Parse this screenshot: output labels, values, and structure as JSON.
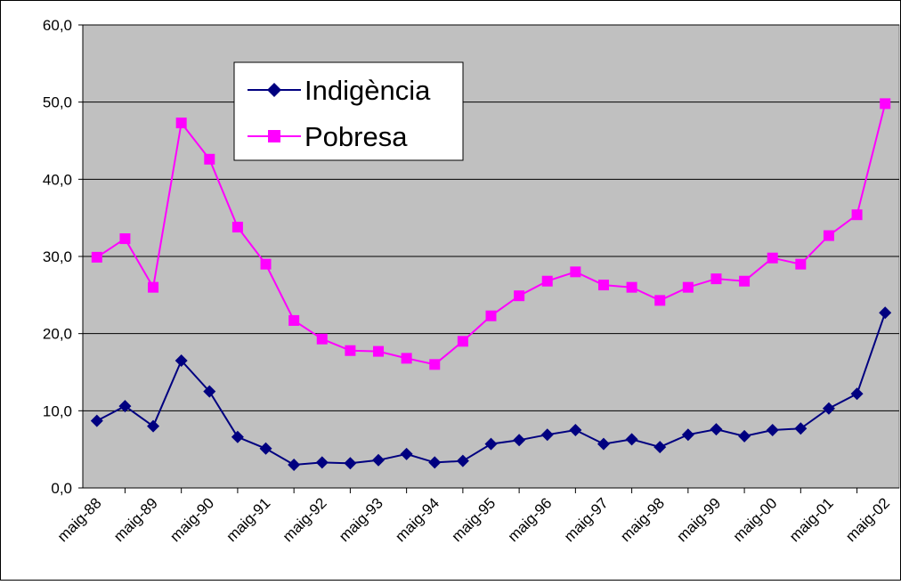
{
  "chart_data": {
    "type": "line",
    "categories": [
      "maig-88",
      null,
      "maig-89",
      null,
      "maig-90",
      null,
      "maig-91",
      null,
      "maig-92",
      null,
      "maig-93",
      null,
      "maig-94",
      null,
      "maig-95",
      null,
      "maig-96",
      null,
      "maig-97",
      null,
      "maig-98",
      null,
      "maig-99",
      null,
      "maig-00",
      null,
      "maig-01",
      null,
      "maig-02"
    ],
    "series": [
      {
        "name": "Indigència",
        "color": "#000080",
        "values": [
          8.7,
          10.6,
          8.0,
          16.5,
          12.5,
          6.6,
          5.1,
          3.0,
          3.3,
          3.2,
          3.6,
          4.4,
          3.3,
          3.5,
          5.7,
          6.2,
          6.9,
          7.5,
          5.7,
          6.3,
          5.3,
          6.9,
          7.6,
          6.7,
          7.5,
          7.7,
          10.3,
          12.2,
          22.7
        ]
      },
      {
        "name": "Pobresa",
        "color": "#ff00ff",
        "values": [
          29.9,
          32.3,
          26.0,
          47.3,
          42.6,
          33.8,
          29.0,
          21.7,
          19.3,
          17.8,
          17.7,
          16.8,
          16.0,
          19.0,
          22.3,
          24.9,
          26.8,
          28.0,
          26.3,
          26.0,
          24.3,
          26.0,
          27.1,
          26.8,
          29.8,
          29.0,
          32.7,
          35.4,
          49.8
        ]
      }
    ],
    "ylim": [
      0,
      60
    ],
    "yticks": [
      {
        "value": 0,
        "label": "0,0"
      },
      {
        "value": 10,
        "label": "10,0"
      },
      {
        "value": 20,
        "label": "20,0"
      },
      {
        "value": 30,
        "label": "30,0"
      },
      {
        "value": 40,
        "label": "40,0"
      },
      {
        "value": 50,
        "label": "50,0"
      },
      {
        "value": 60,
        "label": "60,0"
      }
    ],
    "grid": true,
    "legend": "upper left"
  }
}
